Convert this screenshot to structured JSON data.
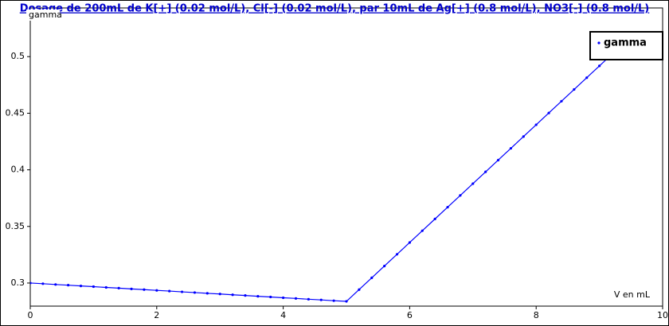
{
  "chart_data": {
    "type": "line",
    "title": "Dosage de 200mL de K[+] (0.02 mol/L), Cl[-] (0.02 mol/L),  par 10mL  de Ag[+] (0.8 mol/L), NO3[-] (0.8 mol/L)",
    "xlabel": "V en mL",
    "ylabel": "gamma",
    "x": [
      0,
      0.2,
      0.4,
      0.6,
      0.8,
      1.0,
      1.2,
      1.4,
      1.6,
      1.8,
      2.0,
      2.2,
      2.4,
      2.6,
      2.8,
      3.0,
      3.2,
      3.4,
      3.6,
      3.8,
      4.0,
      4.2,
      4.4,
      4.6,
      4.8,
      5.0,
      5.2,
      5.4,
      5.6,
      5.8,
      6.0,
      6.2,
      6.4,
      6.6,
      6.8,
      7.0,
      7.2,
      7.4,
      7.6,
      7.8,
      8.0,
      8.2,
      8.4,
      8.6,
      8.8,
      9.0,
      9.2
    ],
    "series": [
      {
        "name": "gamma",
        "color": "#0000ff",
        "values": [
          0.3,
          0.2994,
          0.2987,
          0.2981,
          0.2974,
          0.2968,
          0.2961,
          0.2955,
          0.2948,
          0.2942,
          0.2935,
          0.2929,
          0.2922,
          0.2916,
          0.2909,
          0.2903,
          0.2896,
          0.289,
          0.2883,
          0.2877,
          0.287,
          0.2864,
          0.2857,
          0.2851,
          0.2844,
          0.2838,
          0.2942,
          0.3046,
          0.315,
          0.3254,
          0.3358,
          0.3462,
          0.3566,
          0.367,
          0.3774,
          0.3878,
          0.3982,
          0.4086,
          0.419,
          0.4294,
          0.4398,
          0.4502,
          0.4606,
          0.471,
          0.4814,
          0.4918,
          0.5022
        ]
      }
    ],
    "xlim": [
      0,
      10
    ],
    "xticks": [
      0,
      2,
      4,
      6,
      8,
      10
    ],
    "ylim": [
      0.2796,
      0.543
    ],
    "yticks": [
      0.3,
      0.35,
      0.4,
      0.45,
      0.5
    ],
    "grid": false,
    "legend": "top-right"
  }
}
